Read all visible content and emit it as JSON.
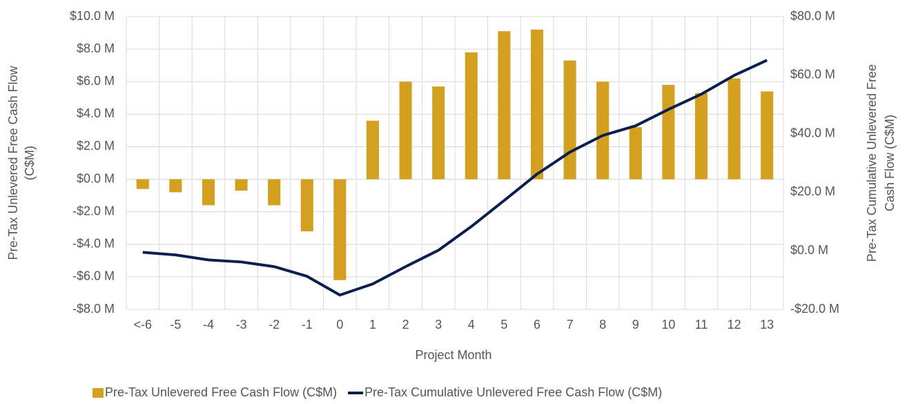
{
  "chart_data": {
    "type": "bar_line",
    "xlabel": "Project Month",
    "ylabel": [
      "Pre-Tax Unlevered Free Cash Flow",
      "(C$M)"
    ],
    "y2label": [
      "Pre-Tax Cumulative Unlevered Free",
      "Cash Flow (C$M)"
    ],
    "categories": [
      "<-6",
      "-5",
      "-4",
      "-3",
      "-2",
      "-1",
      "0",
      "1",
      "2",
      "3",
      "4",
      "5",
      "6",
      "7",
      "8",
      "9",
      "10",
      "11",
      "12",
      "13"
    ],
    "series": [
      {
        "name": "Pre-Tax Unlevered Free Cash Flow (C$M)",
        "type": "bar",
        "color": "#d4a020",
        "values": [
          -0.6,
          -0.8,
          -1.6,
          -0.7,
          -1.6,
          -3.2,
          -6.2,
          3.6,
          6.0,
          5.7,
          7.8,
          9.1,
          9.2,
          7.3,
          6.0,
          3.2,
          5.8,
          5.3,
          6.2,
          5.4
        ]
      },
      {
        "name": "Pre-Tax Cumulative Unlevered Free Cash Flow (C$M)",
        "type": "line",
        "axis": "y2",
        "color": "#0b1f4f",
        "values": [
          -0.5,
          -1.4,
          -3.1,
          -3.8,
          -5.4,
          -8.7,
          -15.1,
          -11.3,
          -5.4,
          0.2,
          8.3,
          17.2,
          26.2,
          33.7,
          39.4,
          42.7,
          48.3,
          53.5,
          59.9,
          65.1
        ]
      }
    ],
    "ylim": [
      -8,
      10
    ],
    "yticks": [
      {
        "value": -8,
        "label": "-$8.0 M"
      },
      {
        "value": -6,
        "label": "-$6.0 M"
      },
      {
        "value": -4,
        "label": "-$4.0 M"
      },
      {
        "value": -2,
        "label": "-$2.0 M"
      },
      {
        "value": 0,
        "label": "$0.0 M"
      },
      {
        "value": 2,
        "label": "$2.0 M"
      },
      {
        "value": 4,
        "label": "$4.0 M"
      },
      {
        "value": 6,
        "label": "$6.0 M"
      },
      {
        "value": 8,
        "label": "$8.0 M"
      },
      {
        "value": 10,
        "label": "$10.0 M"
      }
    ],
    "y2lim": [
      -20,
      80
    ],
    "y2ticks": [
      {
        "value": -20,
        "label": "-$20.0 M"
      },
      {
        "value": 0,
        "label": "$0.0 M"
      },
      {
        "value": 20,
        "label": "$20.0 M"
      },
      {
        "value": 40,
        "label": "$40.0 M"
      },
      {
        "value": 60,
        "label": "$60.0 M"
      },
      {
        "value": 80,
        "label": "$80.0 M"
      }
    ],
    "grid": true,
    "legend": "bottom"
  }
}
